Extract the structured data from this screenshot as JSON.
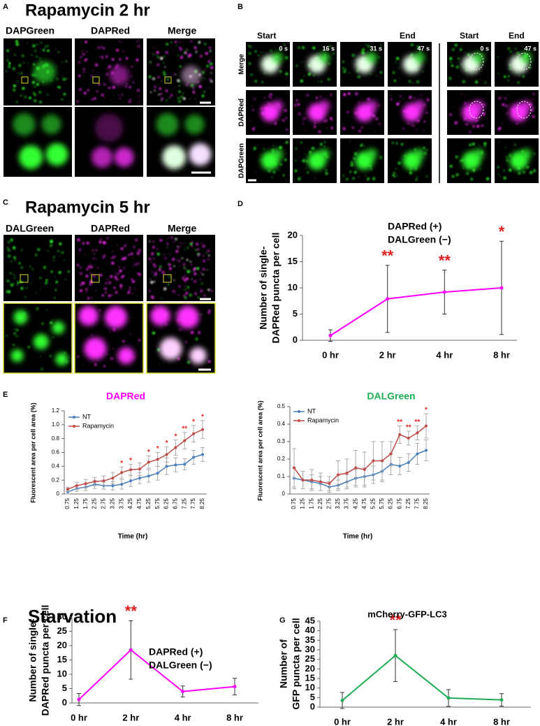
{
  "panels": {
    "A": {
      "letter": "A",
      "title": "Rapamycin 2 hr",
      "columns": [
        "DAPGreen",
        "DAPRed",
        "Merge"
      ]
    },
    "B": {
      "letter": "B",
      "headers": [
        "Start",
        "End",
        "Start",
        "End"
      ],
      "times": [
        "0 s",
        "16 s",
        "31 s",
        "47 s",
        "0 s",
        "47 s"
      ],
      "rows": [
        "Merge",
        "DAPRed",
        "DAPGreen"
      ]
    },
    "C": {
      "letter": "C",
      "title": "Rapamycin 5 hr",
      "columns": [
        "DALGreen",
        "DAPRed",
        "Merge"
      ]
    },
    "D": {
      "letter": "D"
    },
    "E": {
      "letter": "E"
    },
    "F": {
      "letter": "F",
      "title": "Starvation"
    },
    "G": {
      "letter": "G"
    }
  },
  "chart_data": [
    {
      "type": "line",
      "subtitle": [
        "DAPRed (+)",
        "DALGreen (−)"
      ],
      "ylabel": [
        "Number of single-",
        "DAPRed puncta per cell"
      ],
      "categories": [
        "0 hr",
        "2 hr",
        "4 hr",
        "8 hr"
      ],
      "series": [
        {
          "color": "#ff00ff",
          "values": [
            0.9,
            7.9,
            9.2,
            10.0
          ],
          "errors": [
            1.1,
            6.4,
            4.2,
            8.9
          ]
        }
      ],
      "significance": [
        null,
        "**",
        "**",
        "*"
      ],
      "ylim": [
        0,
        20
      ],
      "yticks": [
        0,
        5,
        10,
        15,
        20
      ]
    },
    {
      "type": "line",
      "title": "DAPRed",
      "title_color": "#ff00ff",
      "ylabel": [
        "Fluorescent area per cell area (%)"
      ],
      "xlabel": "Time (hr)",
      "categories": [
        "0.75",
        "1.25",
        "1.75",
        "2.25",
        "2.75",
        "3.25",
        "3.75",
        "4.25",
        "4.75",
        "5.25",
        "5.75",
        "6.25",
        "6.75",
        "7.25",
        "7.75",
        "8.25"
      ],
      "series": [
        {
          "name": "NT",
          "color": "#4a7ebb",
          "values": [
            0.03,
            0.08,
            0.1,
            0.14,
            0.12,
            0.12,
            0.14,
            0.19,
            0.23,
            0.26,
            0.3,
            0.4,
            0.42,
            0.43,
            0.53,
            0.57
          ],
          "errors": [
            0.03,
            0.04,
            0.05,
            0.06,
            0.05,
            0.06,
            0.07,
            0.08,
            0.08,
            0.09,
            0.1,
            0.12,
            0.1,
            0.08,
            0.1,
            0.1
          ]
        },
        {
          "name": "Rapamycin",
          "color": "#be4b48",
          "values": [
            0.07,
            0.12,
            0.15,
            0.18,
            0.19,
            0.23,
            0.31,
            0.35,
            0.36,
            0.46,
            0.5,
            0.57,
            0.67,
            0.77,
            0.87,
            0.93
          ],
          "errors": [
            0.03,
            0.05,
            0.06,
            0.06,
            0.07,
            0.08,
            0.08,
            0.08,
            0.09,
            0.09,
            0.1,
            0.11,
            0.11,
            0.12,
            0.12,
            0.13
          ]
        }
      ],
      "significance": [
        null,
        null,
        null,
        null,
        null,
        null,
        "*",
        "*",
        null,
        "*",
        "*",
        "*",
        "*",
        "**",
        "*",
        "*"
      ],
      "legend": "upper left",
      "ylim": [
        0,
        1.2
      ],
      "yticks": [
        0,
        0.2,
        0.4,
        0.6,
        0.8,
        {
          "value": 1,
          "label": "1.0"
        },
        1.2
      ]
    },
    {
      "type": "line",
      "title": "DALGreen",
      "title_color": "#1fae55",
      "ylabel": [
        "Fluorescent area per cell area (%)"
      ],
      "xlabel": "Time (hr)",
      "categories": [
        "0.75",
        "1.25",
        "1.75",
        "2.25",
        "2.75",
        "3.25",
        "3.75",
        "4.25",
        "4.75",
        "5.25",
        "5.75",
        "6.25",
        "6.75",
        "7.25",
        "7.75",
        "8.25"
      ],
      "series": [
        {
          "name": "NT",
          "color": "#4a7ebb",
          "values": [
            0.09,
            0.08,
            0.07,
            0.06,
            0.04,
            0.05,
            0.07,
            0.09,
            0.1,
            0.11,
            0.13,
            0.17,
            0.16,
            0.18,
            0.23,
            0.25
          ],
          "errors": [
            0.06,
            0.05,
            0.04,
            0.04,
            0.03,
            0.03,
            0.04,
            0.05,
            0.05,
            0.05,
            0.06,
            0.06,
            0.05,
            0.05,
            0.06,
            0.06
          ]
        },
        {
          "name": "Rapamycin",
          "color": "#be4b48",
          "values": [
            0.15,
            0.08,
            0.08,
            0.07,
            0.06,
            0.11,
            0.12,
            0.15,
            0.14,
            0.19,
            0.19,
            0.23,
            0.34,
            0.32,
            0.35,
            0.39
          ],
          "errors": [
            0.11,
            0.05,
            0.06,
            0.05,
            0.04,
            0.08,
            0.08,
            0.1,
            0.1,
            0.11,
            0.11,
            0.07,
            0.05,
            0.04,
            0.04,
            0.07
          ]
        }
      ],
      "significance": [
        null,
        null,
        null,
        null,
        null,
        null,
        null,
        null,
        null,
        null,
        null,
        null,
        "**",
        "**",
        "**",
        "*"
      ],
      "legend": "upper left",
      "ylim": [
        0,
        0.5
      ],
      "yticks": [
        0,
        0.1,
        0.2,
        0.3,
        0.4,
        0.5
      ]
    },
    {
      "type": "line",
      "subtitle": [
        "DAPRed (+)",
        "DALGreen (−)"
      ],
      "ylabel": [
        "Number of single-",
        "DAPRed puncta per cell"
      ],
      "categories": [
        "0 hr",
        "2 hr",
        "4 hr",
        "8 hr"
      ],
      "series": [
        {
          "color": "#ff00ff",
          "values": [
            1.2,
            18.5,
            4.0,
            5.7
          ],
          "errors": [
            2.1,
            10.2,
            1.9,
            2.9
          ]
        }
      ],
      "significance": [
        null,
        "**",
        null,
        null
      ],
      "ylim": [
        0,
        30
      ],
      "yticks": [
        0,
        5,
        10,
        15,
        20,
        25,
        30
      ]
    },
    {
      "type": "line",
      "title": "mCherry-GFP-LC3",
      "ylabel": [
        "Number of",
        "GFP puncta per cell"
      ],
      "categories": [
        "0 hr",
        "2 hr",
        "4 hr",
        "8 hr"
      ],
      "series": [
        {
          "color": "#1fae55",
          "values": [
            3.5,
            27.0,
            4.8,
            3.8
          ],
          "errors": [
            4.2,
            13.6,
            4.4,
            3.3
          ]
        }
      ],
      "significance": [
        null,
        "**",
        null,
        null
      ],
      "ylim": [
        0,
        45
      ],
      "yticks": [
        0,
        5,
        10,
        15,
        20,
        25,
        30,
        35,
        40,
        45
      ]
    }
  ]
}
